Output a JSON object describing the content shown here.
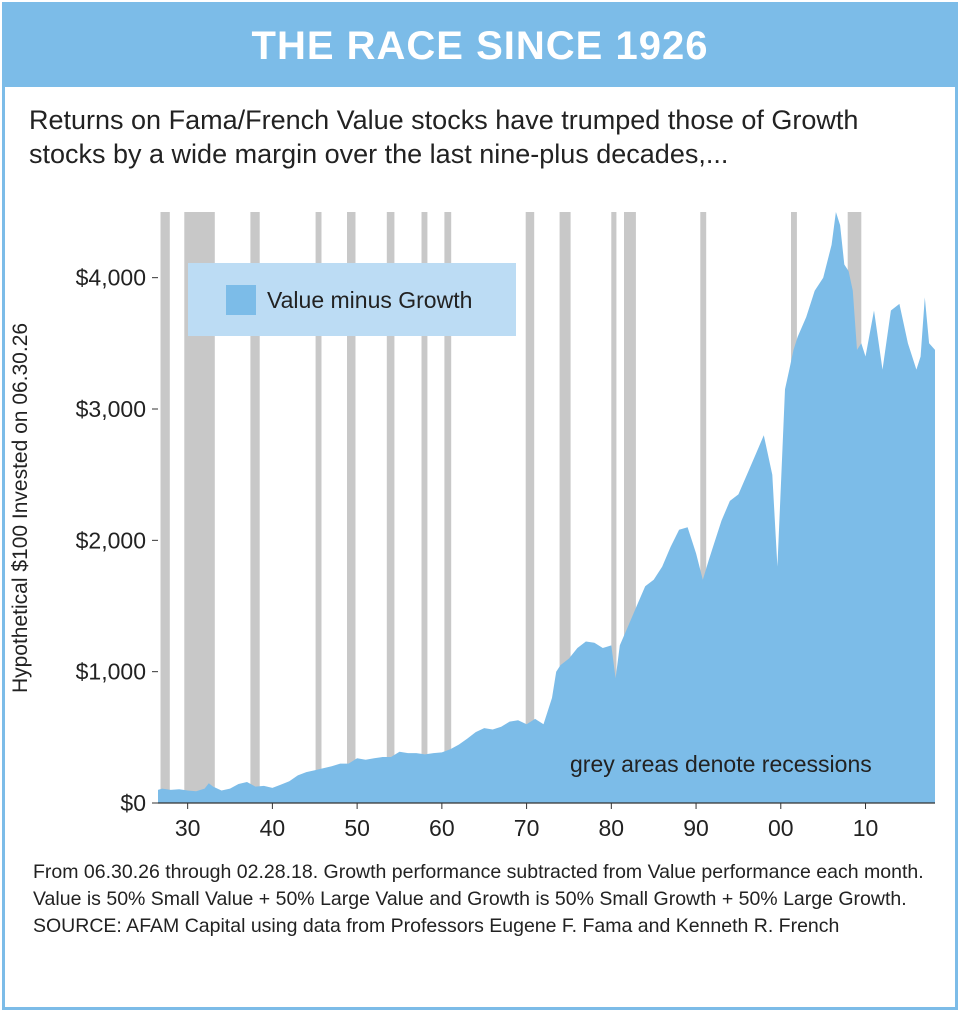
{
  "header": {
    "title": "THE RACE SINCE 1926"
  },
  "subtitle": "Returns on Fama/French Value stocks have trumped those of Growth stocks by a wide margin over the last nine-plus decades,...",
  "footnote": "From 06.30.26 through 02.28.18. Growth performance subtracted from Value performance each month. Value is 50% Small Value + 50% Large Value and Growth is 50% Small Growth + 50% Large Growth. SOURCE: AFAM Capital using data from Professors Eugene F. Fama and Kenneth R. French",
  "chart_data": {
    "type": "area",
    "ylabel": "Hypothetical $100 Invested on 06.30.26",
    "xlabel": "",
    "xlim": [
      1926.5,
      2018.2
    ],
    "ylim": [
      0,
      4500
    ],
    "x_ticks": [
      1930,
      1940,
      1950,
      1960,
      1970,
      1980,
      1990,
      2000,
      2010
    ],
    "x_tick_labels": [
      "30",
      "40",
      "50",
      "60",
      "70",
      "80",
      "90",
      "00",
      "10"
    ],
    "y_ticks": [
      0,
      1000,
      2000,
      3000,
      4000
    ],
    "y_tick_labels": [
      "$0",
      "$1,000",
      "$2,000",
      "$3,000",
      "$4,000"
    ],
    "legend": {
      "position": "top-left",
      "entries": [
        "Value minus Growth"
      ]
    },
    "annotation": "grey areas denote recessions",
    "colors": {
      "area": "#7cbce8",
      "recession": "#c8c8c8",
      "legend_bg": "#bcdcf4",
      "accent": "#7cbce8"
    },
    "recessions": [
      [
        1926.8,
        1927.9
      ],
      [
        1929.6,
        1933.2
      ],
      [
        1937.4,
        1938.5
      ],
      [
        1945.1,
        1945.8
      ],
      [
        1948.8,
        1949.8
      ],
      [
        1953.5,
        1954.4
      ],
      [
        1957.6,
        1958.3
      ],
      [
        1960.3,
        1961.1
      ],
      [
        1969.9,
        1970.9
      ],
      [
        1973.9,
        1975.2
      ],
      [
        1980.0,
        1980.6
      ],
      [
        1981.5,
        1982.9
      ],
      [
        1990.5,
        1991.2
      ],
      [
        2001.2,
        2001.9
      ],
      [
        2007.9,
        2009.5
      ]
    ],
    "series": [
      {
        "name": "Value minus Growth",
        "x": [
          1926.5,
          1927,
          1928,
          1929,
          1930,
          1931,
          1932,
          1932.5,
          1933,
          1934,
          1935,
          1936,
          1937,
          1938,
          1939,
          1940,
          1941,
          1942,
          1943,
          1944,
          1945,
          1946,
          1947,
          1948,
          1949,
          1950,
          1951,
          1952,
          1953,
          1954,
          1955,
          1956,
          1957,
          1958,
          1959,
          1960,
          1961,
          1962,
          1963,
          1964,
          1965,
          1966,
          1967,
          1968,
          1969,
          1970,
          1971,
          1972,
          1973,
          1973.5,
          1974,
          1975,
          1976,
          1977,
          1978,
          1979,
          1980,
          1980.5,
          1981,
          1982,
          1983,
          1984,
          1985,
          1986,
          1987,
          1988,
          1989,
          1990,
          1990.8,
          1991.5,
          1992,
          1993,
          1994,
          1995,
          1996,
          1997,
          1998,
          1999,
          1999.6,
          2000,
          2000.5,
          2001,
          2001.5,
          2002,
          2003,
          2004,
          2005,
          2006,
          2006.5,
          2007,
          2007.5,
          2008,
          2008.5,
          2009,
          2009.5,
          2010,
          2011,
          2012,
          2013,
          2014,
          2015,
          2016,
          2016.5,
          2017,
          2017.5,
          2018.2
        ],
        "y": [
          100,
          110,
          100,
          105,
          95,
          90,
          110,
          150,
          125,
          95,
          110,
          145,
          160,
          125,
          130,
          115,
          140,
          165,
          210,
          235,
          250,
          265,
          280,
          300,
          300,
          340,
          330,
          340,
          350,
          350,
          390,
          380,
          380,
          370,
          380,
          385,
          410,
          445,
          490,
          540,
          570,
          560,
          580,
          620,
          630,
          600,
          640,
          600,
          800,
          1000,
          1050,
          1100,
          1180,
          1230,
          1220,
          1180,
          1200,
          950,
          1200,
          1350,
          1500,
          1650,
          1700,
          1800,
          1950,
          2080,
          2100,
          1900,
          1700,
          1850,
          1950,
          2150,
          2300,
          2350,
          2500,
          2650,
          2800,
          2500,
          1800,
          2400,
          3150,
          3300,
          3450,
          3550,
          3700,
          3900,
          4000,
          4250,
          4500,
          4400,
          4100,
          4050,
          3900,
          3450,
          3500,
          3400,
          3750,
          3300,
          3750,
          3800,
          3500,
          3300,
          3400,
          3850,
          3500,
          3450
        ]
      }
    ]
  }
}
